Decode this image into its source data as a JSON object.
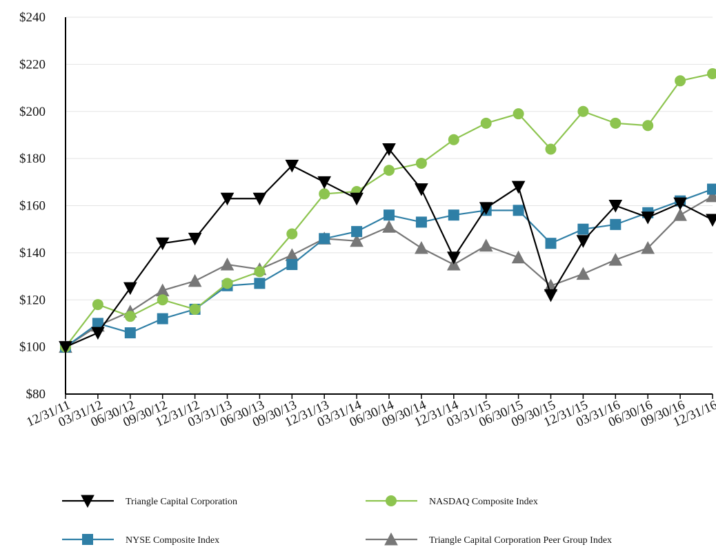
{
  "chart_data": {
    "type": "line",
    "title": "",
    "xlabel": "",
    "ylabel": "",
    "categories": [
      "12/31/11",
      "03/31/12",
      "06/30/12",
      "09/30/12",
      "12/31/12",
      "03/31/13",
      "06/30/13",
      "09/30/13",
      "12/31/13",
      "03/31/14",
      "06/30/14",
      "09/30/14",
      "12/31/14",
      "03/31/15",
      "06/30/15",
      "09/30/15",
      "12/31/15",
      "03/31/16",
      "06/30/16",
      "09/30/16",
      "12/31/16"
    ],
    "ylim": [
      80,
      240
    ],
    "yticks": [
      80,
      100,
      120,
      140,
      160,
      180,
      200,
      220,
      240
    ],
    "ytick_labels": [
      "$80",
      "$100",
      "$120",
      "$140",
      "$160",
      "$180",
      "$200",
      "$220",
      "$240"
    ],
    "grid": "horizontal",
    "legend_position": "bottom",
    "series": [
      {
        "name": "Triangle Capital Corporation",
        "color": "#000000",
        "marker": "triangle-down",
        "values": [
          100,
          106,
          125,
          144,
          146,
          163,
          163,
          177,
          170,
          163,
          184,
          167,
          138,
          159,
          168,
          122,
          145,
          160,
          155,
          161,
          154
        ]
      },
      {
        "name": "NASDAQ Composite Index",
        "color": "#8dc44f",
        "marker": "circle",
        "values": [
          100,
          118,
          113,
          120,
          116,
          127,
          132,
          148,
          165,
          166,
          175,
          178,
          188,
          195,
          199,
          184,
          200,
          195,
          194,
          213,
          216
        ]
      },
      {
        "name": "NYSE Composite Index",
        "color": "#2f7fa6",
        "marker": "square",
        "values": [
          100,
          110,
          106,
          112,
          116,
          126,
          127,
          135,
          146,
          149,
          156,
          153,
          156,
          158,
          158,
          144,
          150,
          152,
          157,
          162,
          167
        ]
      },
      {
        "name": "Triangle Capital Corporation  Peer Group Index",
        "color": "#777777",
        "marker": "triangle-up",
        "values": [
          100,
          109,
          115,
          124,
          128,
          135,
          133,
          139,
          146,
          145,
          151,
          142,
          135,
          143,
          138,
          126,
          131,
          137,
          142,
          156,
          164
        ]
      }
    ]
  }
}
